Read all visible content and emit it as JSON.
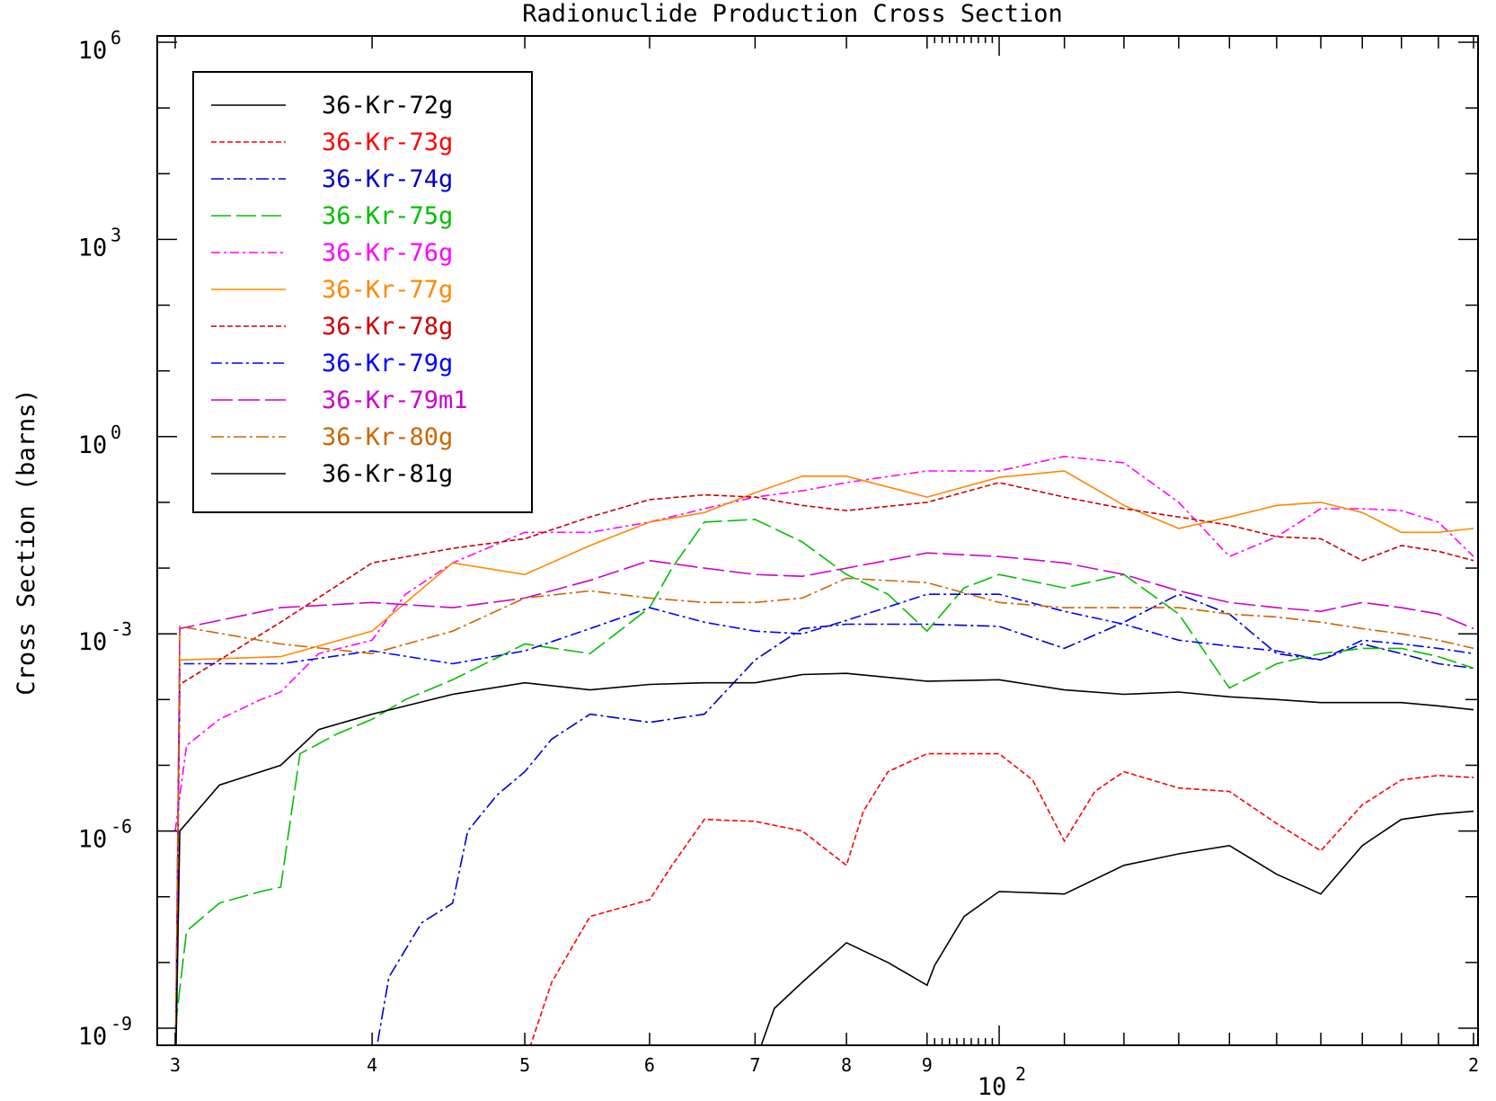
{
  "chart_data": {
    "type": "line",
    "title": "Radionuclide Production Cross Section",
    "ylabel": "Cross Section (barns)",
    "xlabel": "",
    "x_scale": "log",
    "y_scale": "log",
    "xlim": [
      30,
      200
    ],
    "ylim": [
      2e-10,
      1000000.0
    ],
    "grid": false,
    "legend_position": "top-left",
    "x_major_ticks": [
      {
        "value": 100,
        "base": "10",
        "exp": "2"
      }
    ],
    "x_minor_ticks": [
      {
        "value": 30,
        "label": "3"
      },
      {
        "value": 40,
        "label": "4"
      },
      {
        "value": 50,
        "label": "5"
      },
      {
        "value": 60,
        "label": "6"
      },
      {
        "value": 70,
        "label": "7"
      },
      {
        "value": 80,
        "label": "8"
      },
      {
        "value": 90,
        "label": "9"
      },
      {
        "value": 200,
        "label": "2"
      }
    ],
    "y_labeled_ticks": [
      {
        "value": 1e-09,
        "base": "10",
        "exp": "-9"
      },
      {
        "value": 1e-06,
        "base": "10",
        "exp": "-6"
      },
      {
        "value": 0.001,
        "base": "10",
        "exp": "-3"
      },
      {
        "value": 1,
        "base": "10",
        "exp": "0"
      },
      {
        "value": 1000.0,
        "base": "10",
        "exp": "3"
      },
      {
        "value": 1000000.0,
        "base": "10",
        "exp": "6"
      }
    ],
    "series": [
      {
        "name": "36-Kr-72g",
        "color": "#000000",
        "dash": "",
        "x": [
          70,
          72,
          75,
          80,
          85,
          90,
          91,
          95,
          100,
          110,
          120,
          130,
          140,
          150,
          160,
          170,
          180,
          190,
          200
        ],
        "y": [
          3e-10,
          2e-09,
          5e-09,
          2e-08,
          1e-08,
          4.5e-09,
          9e-09,
          5e-08,
          1.2e-07,
          1.1e-07,
          3e-07,
          4.5e-07,
          6e-07,
          2.2e-07,
          1.1e-07,
          6e-07,
          1.5e-06,
          1.8e-06,
          2e-06
        ]
      },
      {
        "name": "36-Kr-73g",
        "color": "#ff0000",
        "dash": "6,3",
        "x": [
          50,
          52,
          55,
          60,
          62,
          65,
          70,
          75,
          80,
          82,
          85,
          90,
          100,
          105,
          110,
          115,
          120,
          130,
          140,
          150,
          160,
          170,
          180,
          190,
          200
        ],
        "y": [
          3e-10,
          5e-09,
          5e-08,
          9e-08,
          3e-07,
          1.5e-06,
          1.4e-06,
          1e-06,
          3e-07,
          2e-06,
          8e-06,
          1.5e-05,
          1.5e-05,
          6e-06,
          7e-07,
          4e-06,
          8e-06,
          4.5e-06,
          4e-06,
          1.3e-06,
          5e-07,
          2.5e-06,
          6e-06,
          7e-06,
          6.5e-06
        ]
      },
      {
        "name": "36-Kr-74g",
        "color": "#0000cc",
        "dash": "14,4,3,4",
        "x": [
          37,
          40,
          41,
          43,
          45,
          46,
          48,
          50,
          52,
          55,
          60,
          65,
          70,
          75,
          80,
          90,
          100,
          110,
          120,
          130,
          140,
          150,
          160,
          170,
          180,
          190,
          200
        ],
        "y": [
          1e-10,
          2e-10,
          6e-09,
          4e-08,
          8e-08,
          1e-06,
          3.5e-06,
          8e-06,
          2.5e-05,
          6e-05,
          4.5e-05,
          6e-05,
          0.0004,
          0.0012,
          0.0014,
          0.0014,
          0.0013,
          0.0006,
          0.0015,
          0.004,
          0.002,
          0.0005,
          0.0004,
          0.0007,
          0.0005,
          0.00035,
          0.0003
        ]
      },
      {
        "name": "36-Kr-75g",
        "color": "#00c000",
        "dash": "22,6",
        "x": [
          30,
          30.5,
          32,
          34,
          35,
          36,
          38,
          40,
          42,
          45,
          50,
          55,
          60,
          62,
          65,
          70,
          75,
          80,
          85,
          90,
          95,
          100,
          110,
          120,
          130,
          140,
          150,
          160,
          170,
          180,
          190,
          200
        ],
        "y": [
          1e-09,
          3e-08,
          8e-08,
          1.2e-07,
          1.4e-07,
          1.5e-05,
          3e-05,
          5e-05,
          0.0001,
          0.0002,
          0.0007,
          0.0005,
          0.0025,
          0.01,
          0.05,
          0.055,
          0.025,
          0.008,
          0.004,
          0.0011,
          0.005,
          0.008,
          0.005,
          0.008,
          0.002,
          0.00015,
          0.00035,
          0.0005,
          0.0006,
          0.0006,
          0.00045,
          0.0003
        ]
      },
      {
        "name": "36-Kr-76g",
        "color": "#ff00ff",
        "dash": "10,4,3,4",
        "x": [
          30,
          30.5,
          32,
          34,
          35,
          37,
          40,
          42,
          45,
          50,
          55,
          60,
          65,
          70,
          75,
          80,
          90,
          100,
          110,
          120,
          130,
          140,
          150,
          160,
          170,
          180,
          190,
          200
        ],
        "y": [
          1e-06,
          2e-05,
          5e-05,
          0.0001,
          0.00013,
          0.0005,
          0.0008,
          0.004,
          0.012,
          0.035,
          0.035,
          0.05,
          0.08,
          0.12,
          0.15,
          0.2,
          0.3,
          0.3,
          0.5,
          0.4,
          0.1,
          0.015,
          0.03,
          0.08,
          0.08,
          0.075,
          0.05,
          0.015
        ]
      },
      {
        "name": "36-Kr-77g",
        "color": "#ff8800",
        "dash": "",
        "x": [
          30,
          30.2,
          35,
          40,
          45,
          50,
          55,
          60,
          65,
          70,
          75,
          80,
          90,
          100,
          110,
          120,
          130,
          140,
          150,
          160,
          170,
          180,
          190,
          200
        ],
        "y": [
          1e-10,
          0.0004,
          0.00045,
          0.0011,
          0.012,
          0.008,
          0.022,
          0.05,
          0.07,
          0.14,
          0.25,
          0.25,
          0.12,
          0.24,
          0.3,
          0.09,
          0.04,
          0.06,
          0.09,
          0.1,
          0.07,
          0.035,
          0.035,
          0.04
        ]
      },
      {
        "name": "36-Kr-78g",
        "color": "#cc0000",
        "dash": "6,3",
        "x": [
          30,
          30.2,
          35,
          40,
          45,
          50,
          55,
          60,
          65,
          70,
          75,
          80,
          90,
          100,
          110,
          120,
          130,
          140,
          150,
          160,
          170,
          180,
          190,
          200
        ],
        "y": [
          1e-10,
          0.00017,
          0.0015,
          0.012,
          0.02,
          0.028,
          0.06,
          0.11,
          0.13,
          0.12,
          0.09,
          0.075,
          0.1,
          0.2,
          0.12,
          0.08,
          0.06,
          0.045,
          0.03,
          0.028,
          0.013,
          0.022,
          0.018,
          0.013
        ]
      },
      {
        "name": "36-Kr-79g",
        "color": "#0000ff",
        "dash": "12,4,3,4",
        "x": [
          30,
          30.2,
          35,
          40,
          45,
          50,
          55,
          60,
          65,
          70,
          75,
          80,
          90,
          100,
          110,
          120,
          130,
          140,
          150,
          160,
          170,
          180,
          190,
          200
        ],
        "y": [
          1e-10,
          0.00035,
          0.00035,
          0.00055,
          0.00035,
          0.00055,
          0.0012,
          0.0025,
          0.0015,
          0.0011,
          0.001,
          0.0016,
          0.004,
          0.004,
          0.0022,
          0.0014,
          0.0008,
          0.00065,
          0.00055,
          0.0004,
          0.0008,
          0.0007,
          0.0006,
          0.0005
        ]
      },
      {
        "name": "36-Kr-79m1",
        "color": "#cc00cc",
        "dash": "24,6",
        "x": [
          30,
          30.2,
          35,
          40,
          45,
          50,
          55,
          60,
          65,
          70,
          75,
          80,
          90,
          100,
          110,
          120,
          130,
          140,
          150,
          160,
          170,
          180,
          190,
          200
        ],
        "y": [
          1e-10,
          0.0012,
          0.0025,
          0.003,
          0.0025,
          0.0035,
          0.0065,
          0.013,
          0.01,
          0.008,
          0.0075,
          0.01,
          0.017,
          0.015,
          0.012,
          0.008,
          0.0045,
          0.003,
          0.0025,
          0.0022,
          0.003,
          0.0025,
          0.002,
          0.0012
        ]
      },
      {
        "name": "36-Kr-80g",
        "color": "#cc6600",
        "dash": "14,4,3,4",
        "x": [
          30,
          30.2,
          35,
          40,
          45,
          50,
          55,
          60,
          65,
          70,
          75,
          80,
          90,
          100,
          110,
          120,
          130,
          140,
          150,
          160,
          170,
          180,
          190,
          200
        ],
        "y": [
          1e-10,
          0.0013,
          0.0007,
          0.0005,
          0.0011,
          0.0035,
          0.0045,
          0.0035,
          0.003,
          0.003,
          0.0035,
          0.007,
          0.006,
          0.003,
          0.0025,
          0.0025,
          0.0025,
          0.002,
          0.0018,
          0.0015,
          0.0012,
          0.001,
          0.0008,
          0.0006
        ]
      },
      {
        "name": "36-Kr-81g",
        "color": "#000000",
        "dash": "",
        "x": [
          30,
          30.2,
          32,
          35,
          37,
          40,
          45,
          50,
          55,
          60,
          65,
          70,
          75,
          80,
          90,
          100,
          110,
          120,
          130,
          140,
          150,
          160,
          170,
          180,
          190,
          200
        ],
        "y": [
          1e-10,
          1e-06,
          5e-06,
          1e-05,
          3.5e-05,
          6e-05,
          0.00012,
          0.00018,
          0.00014,
          0.00017,
          0.00018,
          0.00018,
          0.00024,
          0.00025,
          0.00019,
          0.0002,
          0.00014,
          0.00012,
          0.00013,
          0.00011,
          0.0001,
          9e-05,
          9e-05,
          9e-05,
          8e-05,
          7e-05
        ]
      }
    ]
  }
}
